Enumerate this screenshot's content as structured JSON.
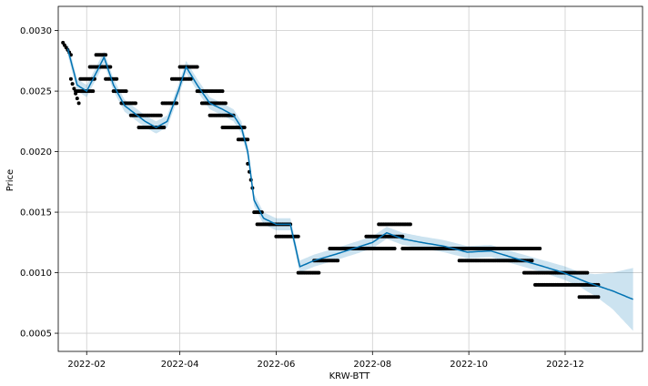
{
  "chart_data": {
    "type": "line",
    "title": "",
    "xlabel": "KRW-BTT",
    "ylabel": "Price",
    "x_range": [
      "2022-01-14",
      "2023-01-19"
    ],
    "ylim": [
      0.00035,
      0.0032
    ],
    "grid": true,
    "x_ticks": [
      "2022-02",
      "2022-04",
      "2022-06",
      "2022-08",
      "2022-10",
      "2022-12"
    ],
    "y_ticks": [
      "0.0005",
      "0.0010",
      "0.0015",
      "0.0020",
      "0.0025",
      "0.0030"
    ],
    "colors": {
      "forecast_line": "#0072B2",
      "uncertainty_band": "#0072B2",
      "observed_points": "#000000",
      "grid": "#cccccc"
    },
    "series": [
      {
        "role": "forecast",
        "x": [
          "2022-01-20",
          "2022-01-26",
          "2022-02-01",
          "2022-02-07",
          "2022-02-12",
          "2022-02-18",
          "2022-02-25",
          "2022-03-03",
          "2022-03-10",
          "2022-03-17",
          "2022-03-24",
          "2022-03-31",
          "2022-04-05",
          "2022-04-12",
          "2022-04-20",
          "2022-04-28",
          "2022-05-05",
          "2022-05-10",
          "2022-05-14",
          "2022-05-18",
          "2022-05-24",
          "2022-06-01",
          "2022-06-10",
          "2022-06-16",
          "2022-06-25",
          "2022-07-08",
          "2022-07-20",
          "2022-08-01",
          "2022-08-10",
          "2022-08-20",
          "2022-09-01",
          "2022-09-15",
          "2022-09-30",
          "2022-10-15",
          "2022-10-30",
          "2022-11-15",
          "2022-11-30",
          "2022-12-15",
          "2022-12-31",
          "2023-01-13"
        ],
        "y": [
          0.00285,
          0.00255,
          0.0025,
          0.00265,
          0.00278,
          0.00255,
          0.00238,
          0.00232,
          0.00225,
          0.0022,
          0.00225,
          0.0025,
          0.0027,
          0.00255,
          0.0024,
          0.00235,
          0.0023,
          0.0022,
          0.002,
          0.0016,
          0.00145,
          0.0014,
          0.0014,
          0.00105,
          0.0011,
          0.00115,
          0.0012,
          0.00125,
          0.00133,
          0.00128,
          0.00125,
          0.00122,
          0.00117,
          0.00118,
          0.00112,
          0.00106,
          0.001,
          0.00092,
          0.00085,
          0.00078
        ]
      },
      {
        "role": "uncertainty",
        "x": [
          "2022-01-20",
          "2022-02-15",
          "2022-03-15",
          "2022-04-15",
          "2022-05-15",
          "2022-06-15",
          "2022-07-15",
          "2022-08-15",
          "2022-09-15",
          "2022-10-15",
          "2022-11-15",
          "2022-12-10",
          "2022-12-20",
          "2022-12-31",
          "2023-01-13"
        ],
        "half_width": [
          5e-05,
          5e-05,
          5e-05,
          5e-05,
          5e-05,
          5e-05,
          5e-05,
          5e-05,
          5e-05,
          5e-05,
          5e-05,
          6e-05,
          9e-05,
          0.00015,
          0.00026
        ]
      },
      {
        "role": "observed",
        "segments": [
          {
            "x": [
              "2022-01-17",
              "2022-01-22"
            ],
            "y": [
              0.0029,
              0.0028
            ]
          },
          {
            "x": [
              "2022-01-22",
              "2022-01-27"
            ],
            "y": [
              0.0026,
              0.0024
            ]
          },
          {
            "x": [
              "2022-01-25",
              "2022-02-05"
            ],
            "y": [
              0.0025,
              0.0025
            ]
          },
          {
            "x": [
              "2022-01-28",
              "2022-02-06"
            ],
            "y": [
              0.0026,
              0.0026
            ]
          },
          {
            "x": [
              "2022-02-03",
              "2022-02-16"
            ],
            "y": [
              0.0027,
              0.0027
            ]
          },
          {
            "x": [
              "2022-02-07",
              "2022-02-13"
            ],
            "y": [
              0.0028,
              0.0028
            ]
          },
          {
            "x": [
              "2022-02-13",
              "2022-02-20"
            ],
            "y": [
              0.0026,
              0.0026
            ]
          },
          {
            "x": [
              "2022-02-18",
              "2022-02-26"
            ],
            "y": [
              0.0025,
              0.0025
            ]
          },
          {
            "x": [
              "2022-02-23",
              "2022-03-04"
            ],
            "y": [
              0.0024,
              0.0024
            ]
          },
          {
            "x": [
              "2022-03-01",
              "2022-03-20"
            ],
            "y": [
              0.0023,
              0.0023
            ]
          },
          {
            "x": [
              "2022-03-06",
              "2022-03-22"
            ],
            "y": [
              0.0022,
              0.0022
            ]
          },
          {
            "x": [
              "2022-03-21",
              "2022-03-30"
            ],
            "y": [
              0.0024,
              0.0024
            ]
          },
          {
            "x": [
              "2022-03-27",
              "2022-04-08"
            ],
            "y": [
              0.0026,
              0.0026
            ]
          },
          {
            "x": [
              "2022-04-01",
              "2022-04-12"
            ],
            "y": [
              0.0027,
              0.0027
            ]
          },
          {
            "x": [
              "2022-04-12",
              "2022-04-28"
            ],
            "y": [
              0.0025,
              0.0025
            ]
          },
          {
            "x": [
              "2022-04-15",
              "2022-04-30"
            ],
            "y": [
              0.0024,
              0.0024
            ]
          },
          {
            "x": [
              "2022-04-20",
              "2022-05-05"
            ],
            "y": [
              0.0023,
              0.0023
            ]
          },
          {
            "x": [
              "2022-04-28",
              "2022-05-12"
            ],
            "y": [
              0.0022,
              0.0022
            ]
          },
          {
            "x": [
              "2022-05-08",
              "2022-05-14"
            ],
            "y": [
              0.0021,
              0.0021
            ]
          },
          {
            "x": [
              "2022-05-14",
              "2022-05-17"
            ],
            "y": [
              0.0019,
              0.0017
            ]
          },
          {
            "x": [
              "2022-05-18",
              "2022-05-23"
            ],
            "y": [
              0.0015,
              0.0015
            ]
          },
          {
            "x": [
              "2022-05-20",
              "2022-06-10"
            ],
            "y": [
              0.0014,
              0.0014
            ]
          },
          {
            "x": [
              "2022-06-01",
              "2022-06-15"
            ],
            "y": [
              0.0013,
              0.0013
            ]
          },
          {
            "x": [
              "2022-06-15",
              "2022-06-28"
            ],
            "y": [
              0.001,
              0.001
            ]
          },
          {
            "x": [
              "2022-06-25",
              "2022-07-10"
            ],
            "y": [
              0.0011,
              0.0011
            ]
          },
          {
            "x": [
              "2022-07-05",
              "2022-08-15"
            ],
            "y": [
              0.0012,
              0.0012
            ]
          },
          {
            "x": [
              "2022-07-28",
              "2022-08-20"
            ],
            "y": [
              0.0013,
              0.0013
            ]
          },
          {
            "x": [
              "2022-08-05",
              "2022-08-25"
            ],
            "y": [
              0.0014,
              0.0014
            ]
          },
          {
            "x": [
              "2022-08-20",
              "2022-11-15"
            ],
            "y": [
              0.0012,
              0.0012
            ]
          },
          {
            "x": [
              "2022-09-25",
              "2022-11-10"
            ],
            "y": [
              0.0011,
              0.0011
            ]
          },
          {
            "x": [
              "2022-11-05",
              "2022-12-15"
            ],
            "y": [
              0.001,
              0.001
            ]
          },
          {
            "x": [
              "2022-11-12",
              "2022-12-22"
            ],
            "y": [
              0.0009,
              0.0009
            ]
          },
          {
            "x": [
              "2022-12-10",
              "2022-12-22"
            ],
            "y": [
              0.0008,
              0.0008
            ]
          }
        ]
      }
    ]
  }
}
